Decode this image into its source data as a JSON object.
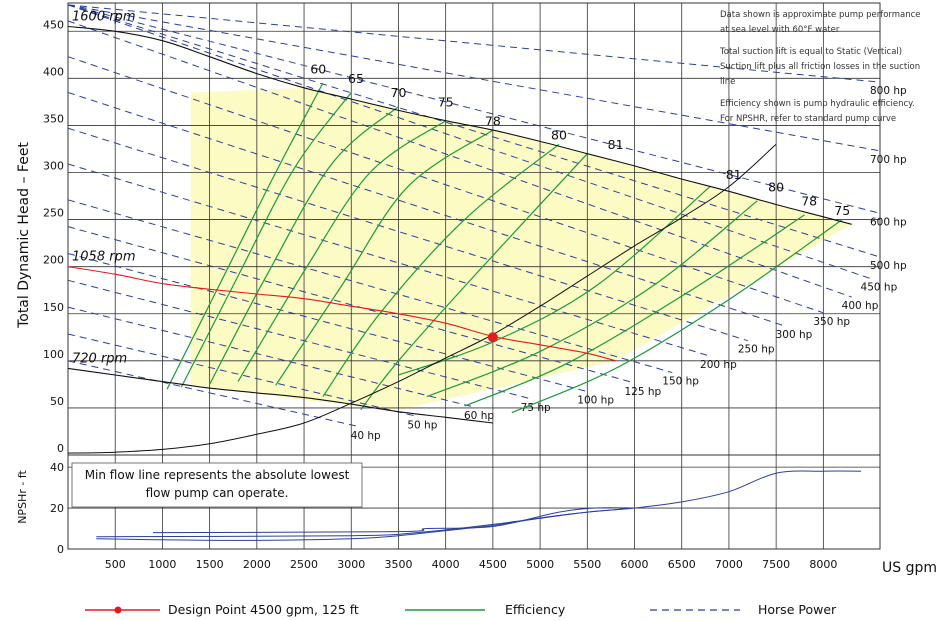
{
  "chart_data": {
    "type": "line",
    "x_unit_label": "US gpm",
    "ylabel": "Total Dynamic Head – Feet",
    "npsh_ylabel": "NPSHr - ft",
    "x_ticks": [
      500,
      1000,
      1500,
      2000,
      2500,
      3000,
      3500,
      4000,
      4500,
      5000,
      5500,
      6000,
      6500,
      7000,
      7500,
      8000
    ],
    "y_ticks": [
      0,
      50,
      100,
      150,
      200,
      250,
      300,
      350,
      400,
      450
    ],
    "npsh_ticks": [
      0,
      20,
      40
    ],
    "xlim": [
      0,
      8600
    ],
    "ylim": [
      0,
      480
    ],
    "npsh_ylim": [
      0,
      42
    ],
    "speed_curves": [
      {
        "name": "1600 rpm",
        "points": [
          [
            0,
            455
          ],
          [
            500,
            450
          ],
          [
            1000,
            440
          ],
          [
            1500,
            423
          ],
          [
            2000,
            405
          ],
          [
            2500,
            390
          ],
          [
            3000,
            378
          ],
          [
            3500,
            366
          ],
          [
            4000,
            355
          ],
          [
            4500,
            345
          ],
          [
            5000,
            333
          ],
          [
            5500,
            320
          ],
          [
            6000,
            307
          ],
          [
            6500,
            293
          ],
          [
            7000,
            280
          ],
          [
            7500,
            266
          ],
          [
            8000,
            253
          ],
          [
            8300,
            245
          ]
        ]
      },
      {
        "name": "1058 rpm",
        "points": [
          [
            0,
            200
          ],
          [
            500,
            192
          ],
          [
            1000,
            182
          ],
          [
            1500,
            176
          ],
          [
            2000,
            171
          ],
          [
            2500,
            166
          ],
          [
            3000,
            158
          ],
          [
            3500,
            150
          ],
          [
            4000,
            140
          ],
          [
            4500,
            126
          ],
          [
            5000,
            117
          ],
          [
            5500,
            108
          ],
          [
            5800,
            100
          ]
        ]
      },
      {
        "name": "720 rpm",
        "points": [
          [
            0,
            92
          ],
          [
            500,
            85
          ],
          [
            1000,
            78
          ],
          [
            1500,
            71
          ],
          [
            2000,
            66
          ],
          [
            2500,
            61
          ],
          [
            3000,
            54
          ],
          [
            3500,
            46
          ],
          [
            4000,
            40
          ],
          [
            4500,
            34
          ]
        ]
      }
    ],
    "system_curve": {
      "points": [
        [
          0,
          2
        ],
        [
          500,
          3
        ],
        [
          1000,
          6
        ],
        [
          1500,
          12
        ],
        [
          2000,
          22
        ],
        [
          2500,
          34
        ],
        [
          3000,
          55
        ],
        [
          3500,
          78
        ],
        [
          4000,
          103
        ],
        [
          4500,
          128
        ],
        [
          5000,
          158
        ],
        [
          5500,
          190
        ],
        [
          6000,
          222
        ],
        [
          6500,
          252
        ],
        [
          7000,
          285
        ],
        [
          7500,
          330
        ]
      ]
    },
    "region": {
      "points": [
        [
          1300,
          385
        ],
        [
          2500,
          390
        ],
        [
          3500,
          366
        ],
        [
          4500,
          345
        ],
        [
          5500,
          320
        ],
        [
          6500,
          293
        ],
        [
          7500,
          266
        ],
        [
          8300,
          245
        ],
        [
          5800,
          100
        ],
        [
          4500,
          70
        ],
        [
          3500,
          48
        ],
        [
          2500,
          58
        ],
        [
          1300,
          75
        ]
      ]
    },
    "design_point": {
      "x": 4500,
      "y": 125,
      "label": "Design Point 4500 gpm, 125 ft"
    },
    "efficiency_labels": [
      "60",
      "65",
      "70",
      "75",
      "78",
      "80",
      "81",
      "81",
      "80",
      "78",
      "75"
    ],
    "efficiency_lines": [
      {
        "name": "60",
        "points": [
          [
            1050,
            70
          ],
          [
            1600,
            180
          ],
          [
            2200,
            300
          ],
          [
            2700,
            395
          ]
        ]
      },
      {
        "name": "65",
        "points": [
          [
            1200,
            72
          ],
          [
            1800,
            190
          ],
          [
            2400,
            305
          ],
          [
            3000,
            385
          ]
        ]
      },
      {
        "name": "70",
        "points": [
          [
            1500,
            75
          ],
          [
            2100,
            190
          ],
          [
            2800,
            310
          ],
          [
            3500,
            370
          ]
        ]
      },
      {
        "name": "75",
        "points": [
          [
            1800,
            78
          ],
          [
            2500,
            195
          ],
          [
            3200,
            300
          ],
          [
            4000,
            355
          ]
        ]
      },
      {
        "name": "78",
        "points": [
          [
            2200,
            74
          ],
          [
            2900,
            180
          ],
          [
            3600,
            285
          ],
          [
            4500,
            345
          ]
        ]
      },
      {
        "name": "80",
        "points": [
          [
            2700,
            62
          ],
          [
            3300,
            150
          ],
          [
            4200,
            250
          ],
          [
            5200,
            330
          ]
        ]
      },
      {
        "name": "81",
        "points": [
          [
            3100,
            48
          ],
          [
            3500,
            100
          ],
          [
            4300,
            190
          ],
          [
            5500,
            320
          ]
        ]
      },
      {
        "name": "81b",
        "points": [
          [
            3500,
            85
          ],
          [
            4500,
            120
          ],
          [
            5600,
            180
          ],
          [
            6800,
            285
          ]
        ]
      },
      {
        "name": "80b",
        "points": [
          [
            3800,
            62
          ],
          [
            5000,
            110
          ],
          [
            6200,
            180
          ],
          [
            7300,
            270
          ]
        ]
      },
      {
        "name": "78b",
        "points": [
          [
            4200,
            52
          ],
          [
            5300,
            98
          ],
          [
            6600,
            175
          ],
          [
            7800,
            255
          ]
        ]
      },
      {
        "name": "75b",
        "points": [
          [
            4700,
            45
          ],
          [
            5800,
            92
          ],
          [
            7000,
            165
          ],
          [
            8200,
            250
          ]
        ]
      }
    ],
    "power_lines": [
      {
        "name": "40 hp",
        "y0": 40,
        "x_start": 0,
        "x_end": 3100
      },
      {
        "name": "50 hp",
        "y0": 55,
        "x_start": 0,
        "x_end": 3700
      },
      {
        "name": "60 hp",
        "y0": 70,
        "x_start": 0,
        "x_end": 4300
      },
      {
        "name": "75 hp",
        "y0": 85,
        "x_start": 0,
        "x_end": 4900
      },
      {
        "name": "100 hp",
        "y0": 100,
        "x_start": 0,
        "x_end": 5500
      },
      {
        "name": "125 hp",
        "y0": 115,
        "x_start": 0,
        "x_end": 6000
      },
      {
        "name": "150 hp",
        "y0": 130,
        "x_start": 0,
        "x_end": 6400
      },
      {
        "name": "200 hp",
        "y0": 150,
        "x_start": 0,
        "x_end": 6800
      },
      {
        "name": "250 hp",
        "y0": 170,
        "x_start": 0,
        "x_end": 7200
      },
      {
        "name": "300 hp",
        "y0": 190,
        "x_start": 0,
        "x_end": 7600
      },
      {
        "name": "350 hp",
        "y0": 210,
        "x_start": 0,
        "x_end": 8000
      },
      {
        "name": "400 hp",
        "y0": 230,
        "x_start": 0,
        "x_end": 8300
      },
      {
        "name": "450 hp",
        "y0": 250,
        "x_start": 0,
        "x_end": 8500
      },
      {
        "name": "500 hp",
        "y0": 270,
        "x_start": 0,
        "x_end": 8600
      },
      {
        "name": "600 hp",
        "y0": 305,
        "x_start": 0,
        "x_end": 8600
      },
      {
        "name": "700 hp",
        "y0": 355,
        "x_start": 0,
        "x_end": 8600
      },
      {
        "name": "800 hp",
        "y0": 410,
        "x_start": 0,
        "x_end": 8600
      }
    ],
    "npsh_curve_1": {
      "points": [
        [
          300,
          5
        ],
        [
          1000,
          4.5
        ],
        [
          2000,
          4.2
        ],
        [
          3000,
          5
        ],
        [
          3500,
          6.5
        ],
        [
          4000,
          9
        ],
        [
          4500,
          11.5
        ],
        [
          5000,
          15
        ],
        [
          5500,
          18
        ],
        [
          6000,
          20
        ],
        [
          6500,
          23
        ],
        [
          7000,
          28
        ],
        [
          7500,
          37
        ],
        [
          8000,
          38
        ],
        [
          8400,
          38
        ]
      ]
    },
    "npsh_curve_2": {
      "points": [
        [
          900,
          8
        ],
        [
          3500,
          8.5
        ],
        [
          3800,
          10
        ],
        [
          4500,
          11
        ],
        [
          5200,
          18
        ],
        [
          5600,
          20
        ],
        [
          6000,
          20
        ]
      ]
    },
    "npsh_curve_3": {
      "points": [
        [
          300,
          6
        ],
        [
          3000,
          6.5
        ],
        [
          3700,
          8
        ],
        [
          4500,
          12
        ],
        [
          5300,
          17
        ],
        [
          6000,
          20
        ]
      ]
    }
  },
  "notes": [
    "Data shown is approximate pump performance at sea level with 60°F water",
    "Total suction lift is equal to Static (Vertical) Suction lift plus all friction losses in the suction line",
    "Efficiency shown is pump hydraulic efficiency. For NPSHR, refer to standard pump curve"
  ],
  "min_flow_note": "Min flow line represents the absolute lowest flow pump can operate.",
  "legend": {
    "design": "Design Point 4500 gpm, 125 ft",
    "efficiency": "Efficiency",
    "power": "Horse Power"
  },
  "colors": {
    "region": "#fdfbc4",
    "design": "#e31b1b",
    "efficiency": "#1a9a3a",
    "power": "#2b3f9e",
    "npsh": "#2b3f9e",
    "grid": "#333333"
  }
}
